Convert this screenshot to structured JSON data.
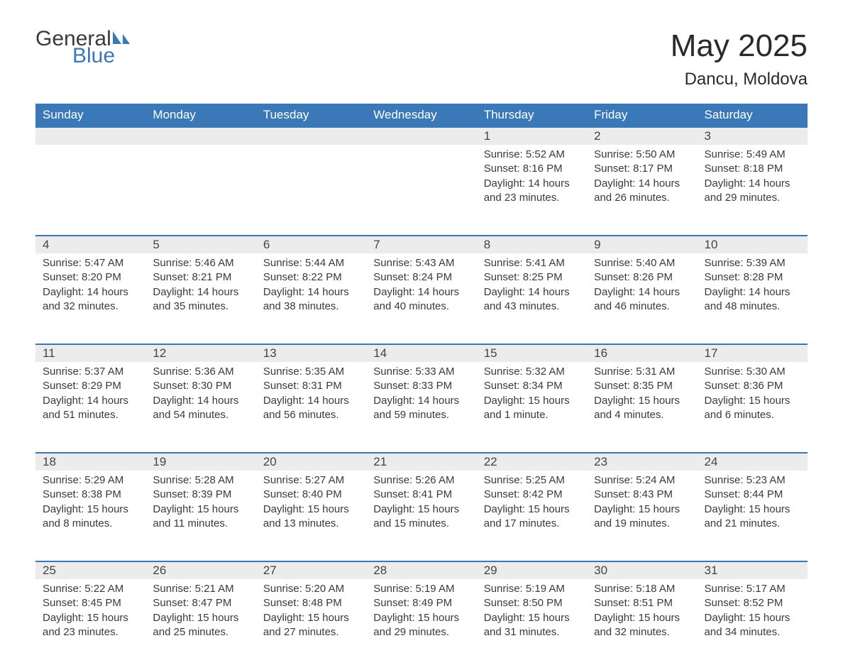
{
  "logo": {
    "general": "General",
    "blue": "Blue"
  },
  "title": "May 2025",
  "subtitle": "Dancu, Moldova",
  "colors": {
    "header_bg": "#3a78b8",
    "header_text": "#ffffff",
    "daynum_bg": "#ececec",
    "text": "#3a3a3a",
    "rule": "#3a78b8"
  },
  "day_headers": [
    "Sunday",
    "Monday",
    "Tuesday",
    "Wednesday",
    "Thursday",
    "Friday",
    "Saturday"
  ],
  "weeks": [
    [
      null,
      null,
      null,
      null,
      {
        "n": "1",
        "sunrise": "Sunrise: 5:52 AM",
        "sunset": "Sunset: 8:16 PM",
        "daylight": "Daylight: 14 hours and 23 minutes."
      },
      {
        "n": "2",
        "sunrise": "Sunrise: 5:50 AM",
        "sunset": "Sunset: 8:17 PM",
        "daylight": "Daylight: 14 hours and 26 minutes."
      },
      {
        "n": "3",
        "sunrise": "Sunrise: 5:49 AM",
        "sunset": "Sunset: 8:18 PM",
        "daylight": "Daylight: 14 hours and 29 minutes."
      }
    ],
    [
      {
        "n": "4",
        "sunrise": "Sunrise: 5:47 AM",
        "sunset": "Sunset: 8:20 PM",
        "daylight": "Daylight: 14 hours and 32 minutes."
      },
      {
        "n": "5",
        "sunrise": "Sunrise: 5:46 AM",
        "sunset": "Sunset: 8:21 PM",
        "daylight": "Daylight: 14 hours and 35 minutes."
      },
      {
        "n": "6",
        "sunrise": "Sunrise: 5:44 AM",
        "sunset": "Sunset: 8:22 PM",
        "daylight": "Daylight: 14 hours and 38 minutes."
      },
      {
        "n": "7",
        "sunrise": "Sunrise: 5:43 AM",
        "sunset": "Sunset: 8:24 PM",
        "daylight": "Daylight: 14 hours and 40 minutes."
      },
      {
        "n": "8",
        "sunrise": "Sunrise: 5:41 AM",
        "sunset": "Sunset: 8:25 PM",
        "daylight": "Daylight: 14 hours and 43 minutes."
      },
      {
        "n": "9",
        "sunrise": "Sunrise: 5:40 AM",
        "sunset": "Sunset: 8:26 PM",
        "daylight": "Daylight: 14 hours and 46 minutes."
      },
      {
        "n": "10",
        "sunrise": "Sunrise: 5:39 AM",
        "sunset": "Sunset: 8:28 PM",
        "daylight": "Daylight: 14 hours and 48 minutes."
      }
    ],
    [
      {
        "n": "11",
        "sunrise": "Sunrise: 5:37 AM",
        "sunset": "Sunset: 8:29 PM",
        "daylight": "Daylight: 14 hours and 51 minutes."
      },
      {
        "n": "12",
        "sunrise": "Sunrise: 5:36 AM",
        "sunset": "Sunset: 8:30 PM",
        "daylight": "Daylight: 14 hours and 54 minutes."
      },
      {
        "n": "13",
        "sunrise": "Sunrise: 5:35 AM",
        "sunset": "Sunset: 8:31 PM",
        "daylight": "Daylight: 14 hours and 56 minutes."
      },
      {
        "n": "14",
        "sunrise": "Sunrise: 5:33 AM",
        "sunset": "Sunset: 8:33 PM",
        "daylight": "Daylight: 14 hours and 59 minutes."
      },
      {
        "n": "15",
        "sunrise": "Sunrise: 5:32 AM",
        "sunset": "Sunset: 8:34 PM",
        "daylight": "Daylight: 15 hours and 1 minute."
      },
      {
        "n": "16",
        "sunrise": "Sunrise: 5:31 AM",
        "sunset": "Sunset: 8:35 PM",
        "daylight": "Daylight: 15 hours and 4 minutes."
      },
      {
        "n": "17",
        "sunrise": "Sunrise: 5:30 AM",
        "sunset": "Sunset: 8:36 PM",
        "daylight": "Daylight: 15 hours and 6 minutes."
      }
    ],
    [
      {
        "n": "18",
        "sunrise": "Sunrise: 5:29 AM",
        "sunset": "Sunset: 8:38 PM",
        "daylight": "Daylight: 15 hours and 8 minutes."
      },
      {
        "n": "19",
        "sunrise": "Sunrise: 5:28 AM",
        "sunset": "Sunset: 8:39 PM",
        "daylight": "Daylight: 15 hours and 11 minutes."
      },
      {
        "n": "20",
        "sunrise": "Sunrise: 5:27 AM",
        "sunset": "Sunset: 8:40 PM",
        "daylight": "Daylight: 15 hours and 13 minutes."
      },
      {
        "n": "21",
        "sunrise": "Sunrise: 5:26 AM",
        "sunset": "Sunset: 8:41 PM",
        "daylight": "Daylight: 15 hours and 15 minutes."
      },
      {
        "n": "22",
        "sunrise": "Sunrise: 5:25 AM",
        "sunset": "Sunset: 8:42 PM",
        "daylight": "Daylight: 15 hours and 17 minutes."
      },
      {
        "n": "23",
        "sunrise": "Sunrise: 5:24 AM",
        "sunset": "Sunset: 8:43 PM",
        "daylight": "Daylight: 15 hours and 19 minutes."
      },
      {
        "n": "24",
        "sunrise": "Sunrise: 5:23 AM",
        "sunset": "Sunset: 8:44 PM",
        "daylight": "Daylight: 15 hours and 21 minutes."
      }
    ],
    [
      {
        "n": "25",
        "sunrise": "Sunrise: 5:22 AM",
        "sunset": "Sunset: 8:45 PM",
        "daylight": "Daylight: 15 hours and 23 minutes."
      },
      {
        "n": "26",
        "sunrise": "Sunrise: 5:21 AM",
        "sunset": "Sunset: 8:47 PM",
        "daylight": "Daylight: 15 hours and 25 minutes."
      },
      {
        "n": "27",
        "sunrise": "Sunrise: 5:20 AM",
        "sunset": "Sunset: 8:48 PM",
        "daylight": "Daylight: 15 hours and 27 minutes."
      },
      {
        "n": "28",
        "sunrise": "Sunrise: 5:19 AM",
        "sunset": "Sunset: 8:49 PM",
        "daylight": "Daylight: 15 hours and 29 minutes."
      },
      {
        "n": "29",
        "sunrise": "Sunrise: 5:19 AM",
        "sunset": "Sunset: 8:50 PM",
        "daylight": "Daylight: 15 hours and 31 minutes."
      },
      {
        "n": "30",
        "sunrise": "Sunrise: 5:18 AM",
        "sunset": "Sunset: 8:51 PM",
        "daylight": "Daylight: 15 hours and 32 minutes."
      },
      {
        "n": "31",
        "sunrise": "Sunrise: 5:17 AM",
        "sunset": "Sunset: 8:52 PM",
        "daylight": "Daylight: 15 hours and 34 minutes."
      }
    ]
  ]
}
